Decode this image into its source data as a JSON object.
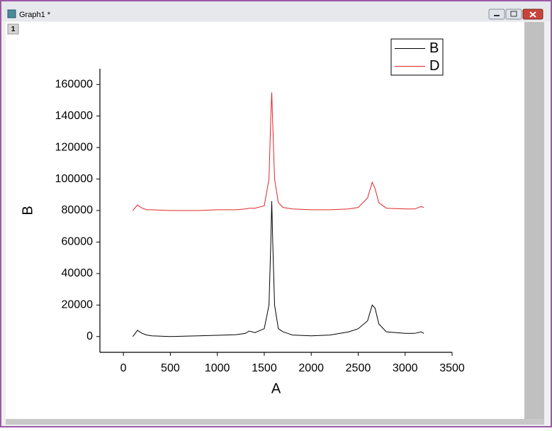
{
  "window": {
    "title": "Graph1 *",
    "layer_label": "1"
  },
  "chart_data": {
    "type": "line",
    "x_label": "A",
    "y_label": "B",
    "x": [
      100,
      150,
      200,
      250,
      300,
      500,
      800,
      1000,
      1200,
      1300,
      1340,
      1400,
      1500,
      1550,
      1570,
      1580,
      1590,
      1610,
      1650,
      1700,
      1750,
      1800,
      2000,
      2200,
      2400,
      2500,
      2600,
      2650,
      2680,
      2720,
      2800,
      3000,
      3100,
      3170,
      3200
    ],
    "series": [
      {
        "name": "B",
        "color": "#000000",
        "values": [
          0,
          4000,
          2000,
          1000,
          500,
          0,
          500,
          800,
          1200,
          2000,
          3500,
          2500,
          5000,
          20000,
          60000,
          86000,
          60000,
          20000,
          5000,
          3000,
          2000,
          1000,
          500,
          1000,
          3000,
          5000,
          10000,
          20000,
          18000,
          8000,
          3000,
          2000,
          2000,
          3000,
          2000
        ]
      },
      {
        "name": "D",
        "color": "#e0262a",
        "values": [
          80000,
          83500,
          81500,
          80500,
          80500,
          80000,
          80000,
          80500,
          80500,
          81000,
          81500,
          81500,
          83000,
          100000,
          140000,
          155000,
          135000,
          100000,
          85000,
          82000,
          81500,
          81000,
          80500,
          80500,
          81000,
          82000,
          88000,
          98000,
          94000,
          85000,
          81500,
          81000,
          81000,
          82500,
          82000
        ]
      }
    ],
    "xlim": [
      -250,
      3500
    ],
    "ylim": [
      -10000,
      170000
    ],
    "xticks": [
      0,
      500,
      1000,
      1500,
      2000,
      2500,
      3000,
      3500
    ],
    "yticks": [
      0,
      20000,
      40000,
      60000,
      80000,
      100000,
      120000,
      140000,
      160000
    ],
    "legend": "top-right"
  }
}
